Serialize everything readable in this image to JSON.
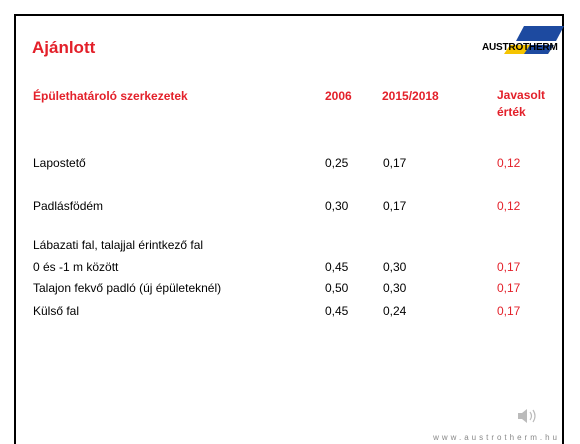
{
  "header": {
    "title": "Ajánlott",
    "logo": "AUSTROTHERM"
  },
  "table": {
    "columns": [
      "Épülethatároló  szerkezetek",
      "2006",
      "2015/2018",
      "Javasolt érték"
    ],
    "rows": [
      [
        "Lapostető",
        "0,25",
        "0,17",
        "0,12"
      ],
      [
        "Padlásfödém",
        "0,30",
        "0,17",
        "0,12"
      ],
      [
        "Lábazati fal, talajjal érintkező fal"
      ],
      [
        "0 és -1 m között",
        "0,45",
        "0,30",
        "0,17"
      ],
      [
        "Talajon fekvő padló (új épületeknél)",
        "0,50",
        "0,30",
        "0,17"
      ],
      [
        "Külső fal",
        "0,45",
        "0,24",
        "0,17"
      ]
    ]
  },
  "footer": {
    "url": "www.austrotherm.hu"
  }
}
